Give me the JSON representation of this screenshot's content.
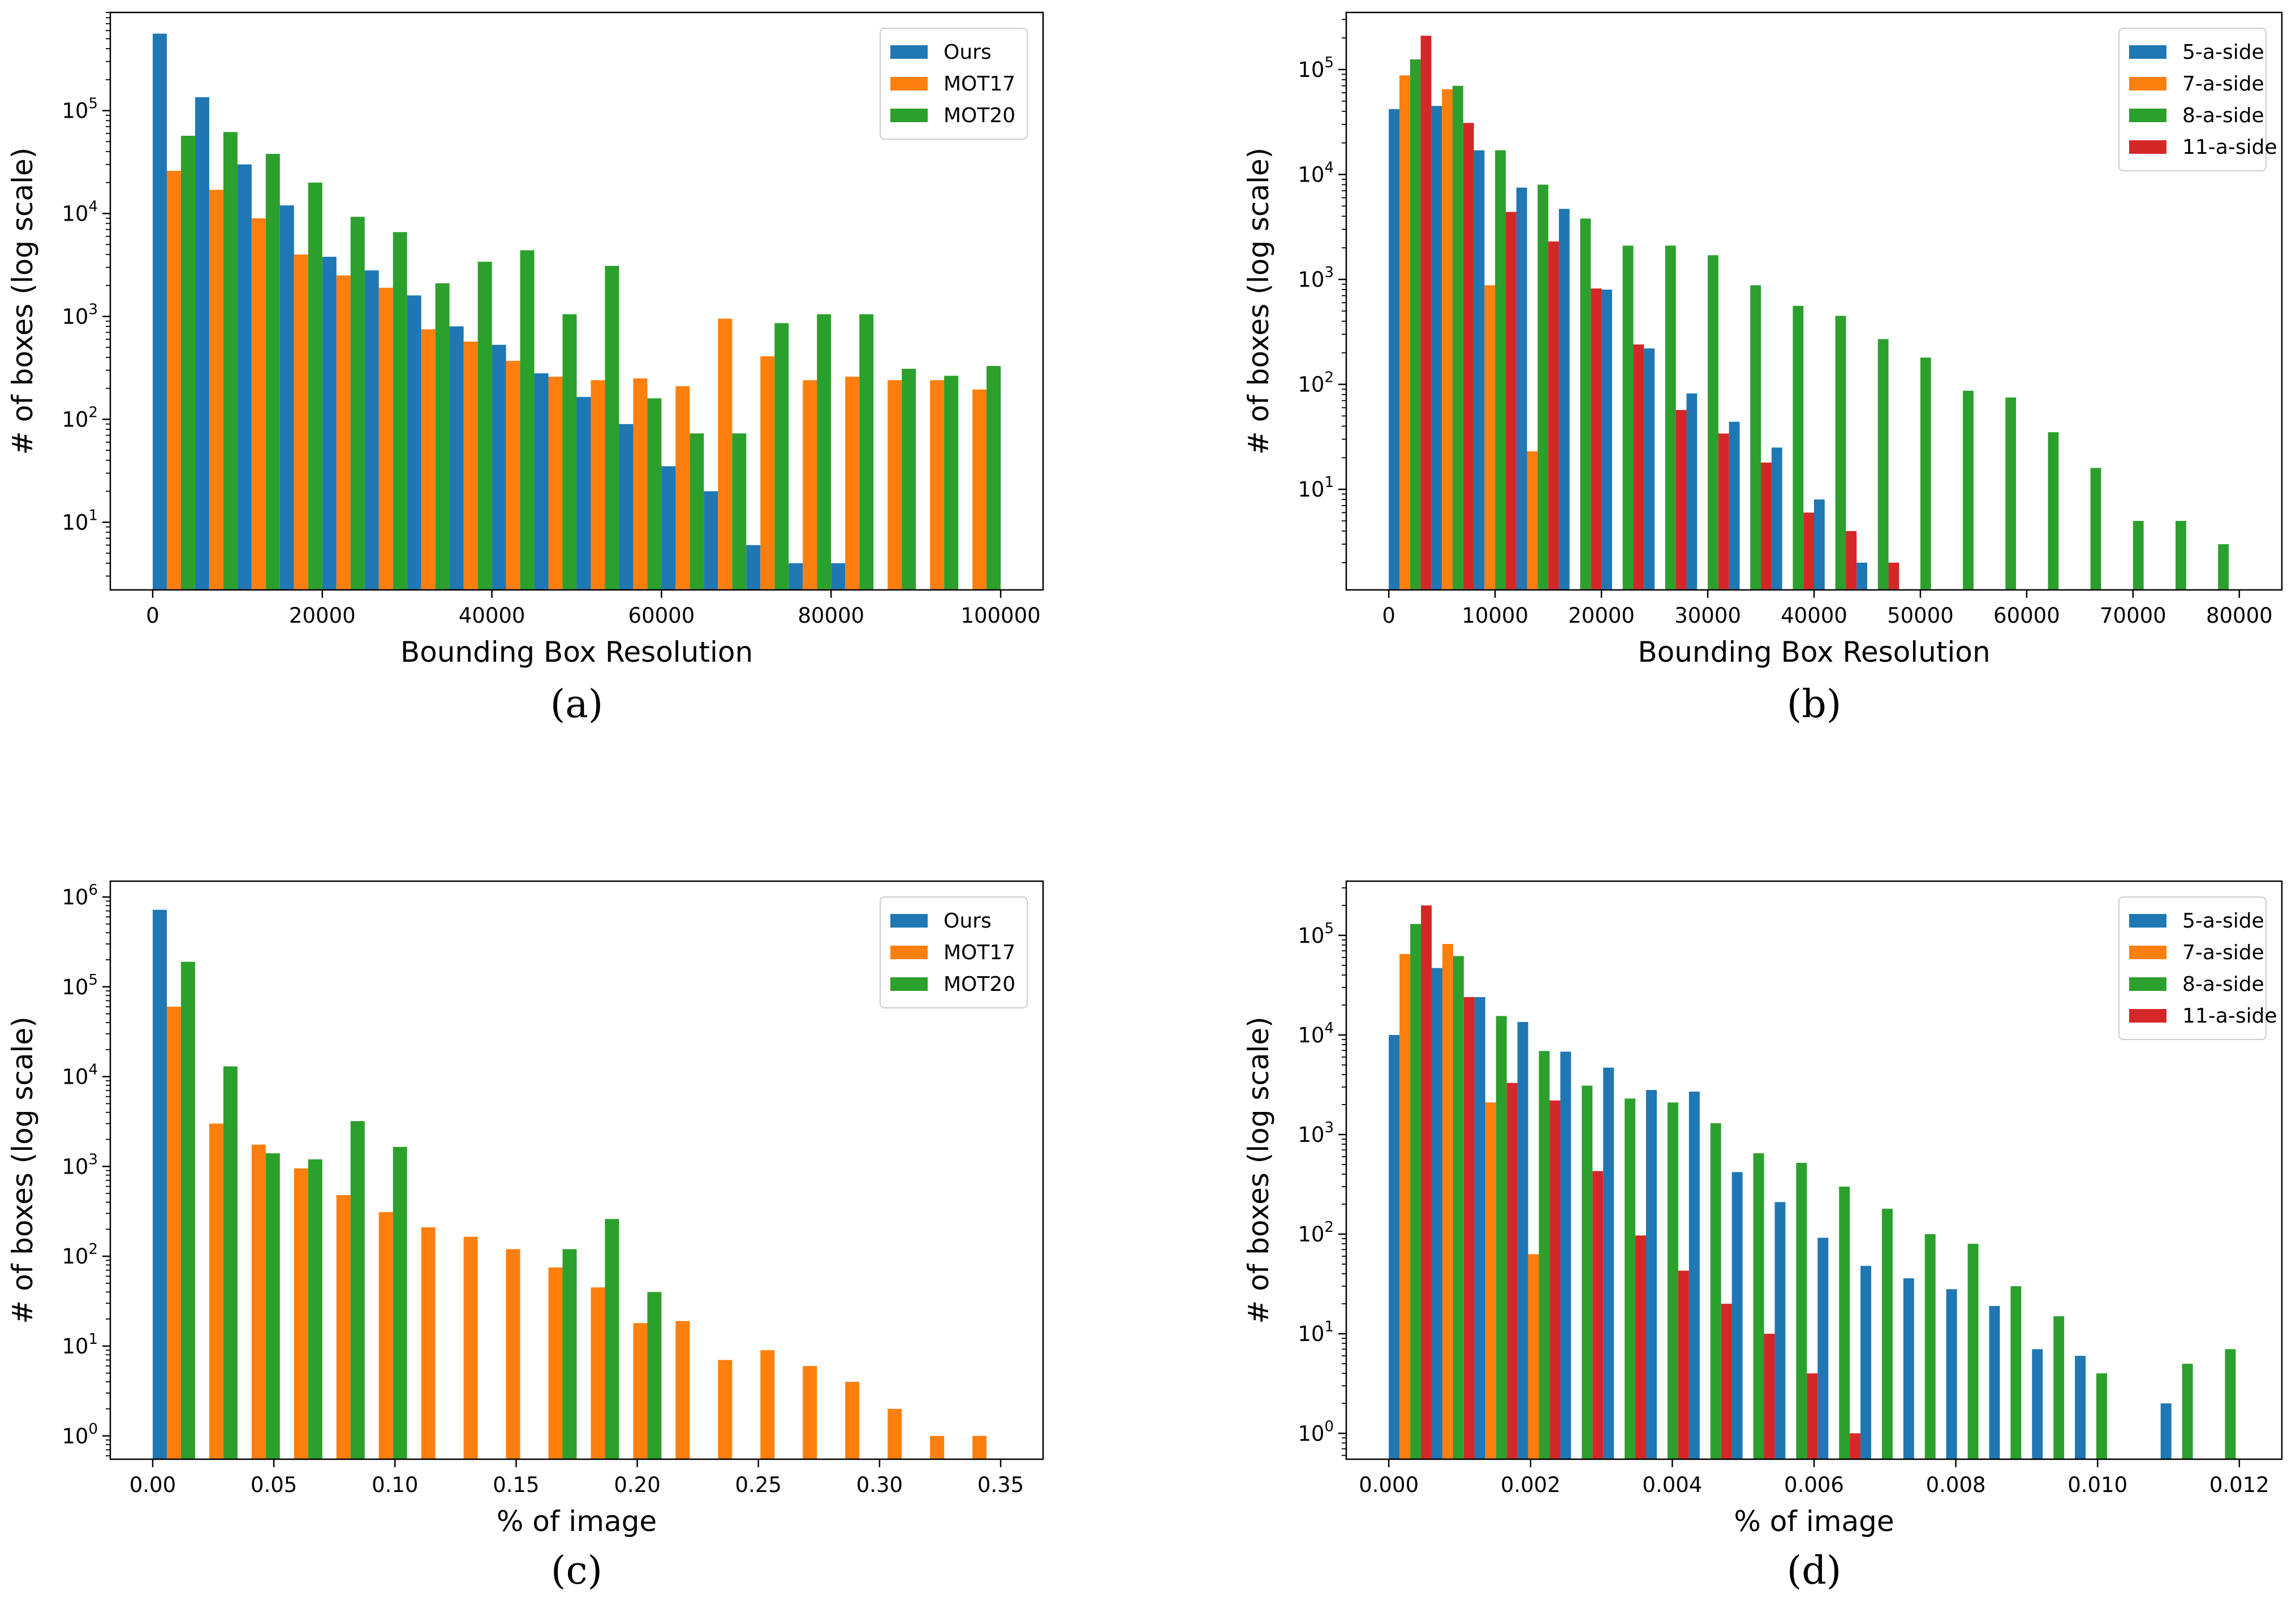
{
  "chart_data": [
    {
      "id": "a",
      "panel_label": "(a)",
      "type": "bar",
      "yscale": "log",
      "xlabel": "Bounding Box Resolution",
      "ylabel": "# of boxes (log scale)",
      "xlim": [
        -5000,
        105000
      ],
      "ylim": [
        2.2,
        900000
      ],
      "xticks": [
        0,
        20000,
        40000,
        60000,
        80000,
        100000
      ],
      "xtick_labels": [
        "0",
        "20000",
        "40000",
        "60000",
        "80000",
        "100000"
      ],
      "yticks_exp": [
        1,
        2,
        3,
        4,
        5
      ],
      "legend": "top-right",
      "bin_width": 5000,
      "bin_starts": [
        0,
        5000,
        10000,
        15000,
        20000,
        25000,
        30000,
        35000,
        40000,
        45000,
        50000,
        55000,
        60000,
        65000,
        70000,
        75000,
        80000,
        85000,
        90000,
        95000
      ],
      "series": [
        {
          "name": "Ours",
          "color": "#1f77b4",
          "values": [
            560000,
            135000,
            30000,
            12000,
            3800,
            2800,
            1600,
            800,
            530,
            280,
            165,
            90,
            35,
            20,
            6,
            4,
            4,
            null,
            null,
            null
          ]
        },
        {
          "name": "MOT17",
          "color": "#ff7f0e",
          "values": [
            26000,
            17000,
            9000,
            4000,
            2500,
            1900,
            750,
            570,
            370,
            260,
            240,
            250,
            210,
            950,
            410,
            240,
            260,
            240,
            240,
            195
          ]
        },
        {
          "name": "MOT20",
          "color": "#2ca02c",
          "values": [
            57000,
            62000,
            38000,
            20000,
            9300,
            6600,
            2100,
            3400,
            4400,
            1050,
            3100,
            160,
            73,
            73,
            860,
            1050,
            1050,
            310,
            265,
            330
          ]
        }
      ]
    },
    {
      "id": "b",
      "panel_label": "(b)",
      "type": "bar",
      "yscale": "log",
      "xlabel": "Bounding Box Resolution",
      "ylabel": "# of boxes (log scale)",
      "xlim": [
        -4000,
        84000
      ],
      "ylim": [
        1.1,
        350000
      ],
      "xticks": [
        0,
        10000,
        20000,
        30000,
        40000,
        50000,
        60000,
        70000,
        80000
      ],
      "xtick_labels": [
        "0",
        "10000",
        "20000",
        "30000",
        "40000",
        "50000",
        "60000",
        "70000",
        "80000"
      ],
      "yticks_exp": [
        1,
        2,
        3,
        4,
        5
      ],
      "legend": "top-right",
      "bin_width": 4000,
      "bin_starts": [
        0,
        4000,
        8000,
        12000,
        16000,
        20000,
        24000,
        28000,
        32000,
        36000,
        40000,
        44000,
        48000,
        52000,
        56000,
        60000,
        64000,
        68000,
        72000,
        76000
      ],
      "series": [
        {
          "name": "5-a-side",
          "color": "#1f77b4",
          "values": [
            42000,
            45000,
            17000,
            7500,
            4700,
            800,
            220,
            82,
            44,
            25,
            8,
            2,
            null,
            null,
            null,
            null,
            null,
            null,
            null,
            null
          ]
        },
        {
          "name": "7-a-side",
          "color": "#ff7f0e",
          "values": [
            88000,
            65000,
            880,
            23,
            null,
            null,
            null,
            null,
            null,
            null,
            null,
            null,
            null,
            null,
            null,
            null,
            null,
            null,
            null,
            null
          ]
        },
        {
          "name": "8-a-side",
          "color": "#2ca02c",
          "values": [
            125000,
            70000,
            17000,
            8000,
            3800,
            2100,
            2100,
            1700,
            880,
            560,
            450,
            270,
            180,
            87,
            75,
            35,
            16,
            5,
            5,
            3
          ]
        },
        {
          "name": "11-a-side",
          "color": "#d62728",
          "values": [
            210000,
            31000,
            4400,
            2300,
            820,
            240,
            57,
            34,
            18,
            6,
            4,
            2,
            null,
            null,
            null,
            null,
            null,
            null,
            null,
            null
          ]
        }
      ]
    },
    {
      "id": "c",
      "panel_label": "(c)",
      "type": "bar",
      "yscale": "log",
      "xlabel": "% of image",
      "ylabel": "# of boxes (log scale)",
      "xlim": [
        -0.0175,
        0.3675
      ],
      "ylim": [
        0.55,
        1500000
      ],
      "xticks": [
        0,
        0.05,
        0.1,
        0.15,
        0.2,
        0.25,
        0.3,
        0.35
      ],
      "xtick_labels": [
        "0.00",
        "0.05",
        "0.10",
        "0.15",
        "0.20",
        "0.25",
        "0.30",
        "0.35"
      ],
      "yticks_exp": [
        0,
        1,
        2,
        3,
        4,
        5,
        6
      ],
      "legend": "top-right",
      "bin_width": 0.0175,
      "bin_starts": [
        0,
        0.0175,
        0.035,
        0.0525,
        0.07,
        0.0875,
        0.105,
        0.1225,
        0.14,
        0.1575,
        0.175,
        0.1925,
        0.21,
        0.2275,
        0.245,
        0.2625,
        0.28,
        0.2975,
        0.315,
        0.3325
      ],
      "series": [
        {
          "name": "Ours",
          "color": "#1f77b4",
          "values": [
            720000,
            null,
            null,
            null,
            null,
            null,
            null,
            null,
            null,
            null,
            null,
            null,
            null,
            null,
            null,
            null,
            null,
            null,
            null,
            null
          ]
        },
        {
          "name": "MOT17",
          "color": "#ff7f0e",
          "values": [
            60000,
            3000,
            1750,
            950,
            480,
            310,
            210,
            165,
            120,
            75,
            45,
            18,
            19,
            7,
            9,
            6,
            4,
            2,
            1,
            1
          ]
        },
        {
          "name": "MOT20",
          "color": "#2ca02c",
          "values": [
            190000,
            13000,
            1400,
            1200,
            3200,
            1650,
            null,
            null,
            null,
            120,
            260,
            40,
            null,
            null,
            null,
            null,
            null,
            null,
            null,
            null
          ]
        }
      ]
    },
    {
      "id": "d",
      "panel_label": "(d)",
      "type": "bar",
      "yscale": "log",
      "xlabel": "% of image",
      "ylabel": "# of boxes (log scale)",
      "xlim": [
        -0.0006,
        0.0126
      ],
      "ylim": [
        0.55,
        350000
      ],
      "xticks": [
        0,
        0.002,
        0.004,
        0.006,
        0.008,
        0.01,
        0.012
      ],
      "xtick_labels": [
        "0.000",
        "0.002",
        "0.004",
        "0.006",
        "0.008",
        "0.010",
        "0.012"
      ],
      "yticks_exp": [
        0,
        1,
        2,
        3,
        4,
        5
      ],
      "legend": "top-right",
      "bin_width": 0.000605,
      "bin_starts": [
        0,
        0.000605,
        0.00121,
        0.001815,
        0.00242,
        0.003025,
        0.00363,
        0.004235,
        0.00484,
        0.005445,
        0.00605,
        0.006655,
        0.00726,
        0.007865,
        0.00847,
        0.009075,
        0.00968,
        0.010285,
        0.01089,
        0.011495
      ],
      "series": [
        {
          "name": "5-a-side",
          "color": "#1f77b4",
          "values": [
            10000,
            47000,
            24000,
            13500,
            6800,
            4700,
            2800,
            2700,
            420,
            210,
            92,
            48,
            36,
            28,
            19,
            7,
            6,
            null,
            2,
            null
          ]
        },
        {
          "name": "7-a-side",
          "color": "#ff7f0e",
          "values": [
            65000,
            82000,
            2100,
            63,
            null,
            null,
            null,
            null,
            null,
            null,
            null,
            null,
            null,
            null,
            null,
            null,
            null,
            null,
            null,
            null
          ]
        },
        {
          "name": "8-a-side",
          "color": "#2ca02c",
          "values": [
            130000,
            62000,
            15500,
            6900,
            3100,
            2300,
            2100,
            1300,
            650,
            520,
            300,
            180,
            100,
            80,
            30,
            15,
            4,
            null,
            5,
            7
          ]
        },
        {
          "name": "11-a-side",
          "color": "#d62728",
          "values": [
            200000,
            24000,
            3300,
            2200,
            430,
            97,
            43,
            20,
            10,
            4,
            1,
            null,
            null,
            null,
            null,
            null,
            null,
            null,
            null,
            null
          ]
        }
      ]
    }
  ]
}
